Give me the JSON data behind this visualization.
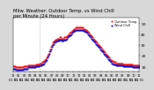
{
  "title": "Milw. Weather: Outdoor Temp. vs Wind Chill",
  "subtitle": "per Minute (24 Hours)",
  "legend_temp": "Outdoor Temp.",
  "legend_chill": "Wind Chill",
  "bg_color": "#d8d8d8",
  "plot_bg": "#ffffff",
  "temp_color": "#ff0000",
  "chill_color": "#0000cc",
  "ylim": [
    5,
    55
  ],
  "yticks": [
    10,
    20,
    30,
    40,
    50
  ],
  "temp_data": [
    10,
    10,
    10,
    9,
    9,
    9,
    9,
    9,
    9,
    9,
    9,
    9,
    10,
    10,
    10,
    10,
    10,
    11,
    11,
    11,
    11,
    11,
    11,
    11,
    11,
    11,
    12,
    12,
    12,
    12,
    13,
    13,
    13,
    14,
    14,
    15,
    16,
    17,
    18,
    20,
    22,
    24,
    26,
    28,
    30,
    32,
    33,
    34,
    35,
    35,
    36,
    36,
    36,
    37,
    37,
    36,
    36,
    36,
    37,
    37,
    37,
    38,
    39,
    40,
    41,
    41,
    42,
    43,
    44,
    45,
    45,
    46,
    46,
    46,
    46,
    46,
    46,
    46,
    46,
    46,
    45,
    45,
    44,
    44,
    43,
    42,
    41,
    40,
    39,
    38,
    37,
    36,
    35,
    34,
    33,
    32,
    31,
    30,
    29,
    28,
    27,
    26,
    25,
    24,
    23,
    22,
    21,
    20,
    19,
    18,
    17,
    16,
    15,
    15,
    14,
    14,
    14,
    13,
    13,
    13,
    13,
    13,
    13,
    13,
    13,
    12,
    12,
    12,
    12,
    12,
    12,
    12,
    12,
    12,
    12,
    12,
    11,
    11,
    11,
    11,
    11,
    11,
    11,
    11
  ],
  "chill_data": [
    8,
    8,
    8,
    7,
    7,
    7,
    7,
    7,
    7,
    7,
    7,
    7,
    8,
    8,
    8,
    8,
    8,
    9,
    9,
    9,
    9,
    9,
    9,
    9,
    9,
    9,
    10,
    10,
    10,
    10,
    11,
    11,
    11,
    12,
    12,
    13,
    14,
    15,
    16,
    18,
    20,
    22,
    24,
    26,
    28,
    30,
    31,
    32,
    33,
    33,
    34,
    34,
    34,
    35,
    35,
    34,
    34,
    34,
    35,
    35,
    35,
    36,
    37,
    38,
    39,
    39,
    40,
    41,
    42,
    43,
    43,
    44,
    44,
    44,
    44,
    44,
    44,
    44,
    44,
    44,
    43,
    43,
    42,
    42,
    41,
    40,
    39,
    38,
    37,
    36,
    35,
    34,
    33,
    32,
    31,
    30,
    29,
    28,
    27,
    26,
    25,
    24,
    23,
    22,
    21,
    20,
    19,
    18,
    17,
    16,
    15,
    14,
    13,
    13,
    12,
    12,
    12,
    11,
    11,
    11,
    11,
    11,
    11,
    11,
    11,
    10,
    10,
    10,
    10,
    10,
    10,
    10,
    10,
    10,
    10,
    10,
    9,
    9,
    9,
    9,
    9,
    9,
    9,
    9
  ],
  "vline_x": 30,
  "vline_color": "#999999",
  "title_fontsize": 3.8,
  "marker_size": 1.0,
  "xtick_fontsize": 2.5,
  "ytick_fontsize": 3.2,
  "n_points": 144,
  "n_hours": 24
}
